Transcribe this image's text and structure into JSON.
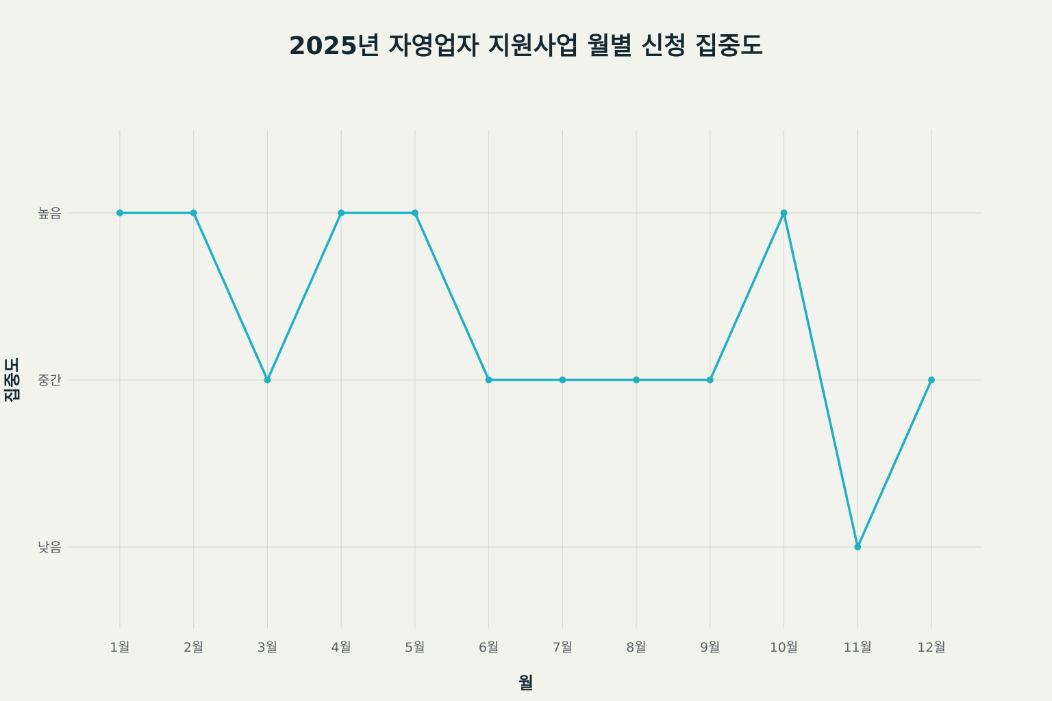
{
  "chart_data": {
    "type": "line",
    "title": "2025년 자영업자 지원사업 월별 신청 집중도",
    "xlabel": "월",
    "ylabel": "집중도",
    "categories": [
      "1월",
      "2월",
      "3월",
      "4월",
      "5월",
      "6월",
      "7월",
      "8월",
      "9월",
      "10월",
      "11월",
      "12월"
    ],
    "y_levels": [
      "낮음",
      "중간",
      "높음"
    ],
    "series": [
      {
        "values": [
          "높음",
          "높음",
          "중간",
          "높음",
          "높음",
          "중간",
          "중간",
          "중간",
          "중간",
          "높음",
          "낮음",
          "중간"
        ],
        "color": "#1fb0c2"
      }
    ],
    "grid": true,
    "legend": "none"
  }
}
